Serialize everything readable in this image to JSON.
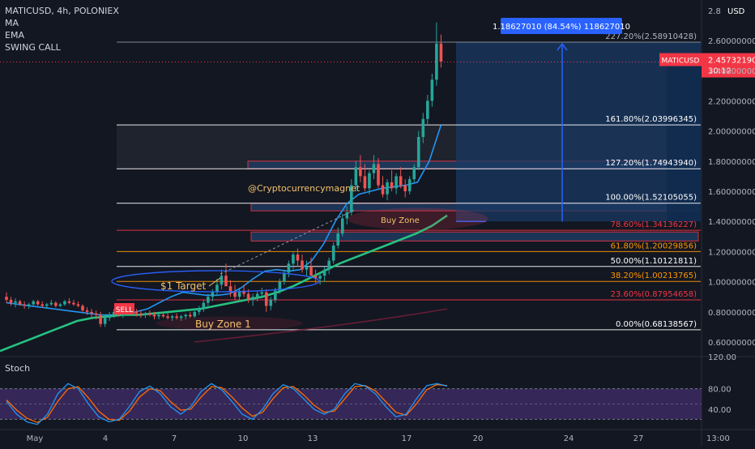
{
  "header": {
    "symbol_line": "MATICUSD, 4h, POLONIEX",
    "indicators": [
      "MA",
      "EMA",
      "SWING CALL"
    ]
  },
  "price_axis": {
    "currency": "USD",
    "ticks": [
      "2.8",
      "2.60000000",
      "2.40000000",
      "2.20000000",
      "2.00000000",
      "1.80000000",
      "1.60000000",
      "1.40000000",
      "1.20000000",
      "1.00000000",
      "0.80000000",
      "0.60000000"
    ],
    "current_symbol": "MATICUSD",
    "current_price": "2.45732190",
    "countdown": "30:12"
  },
  "stoch": {
    "label": "Stoch",
    "axis_top": "120.00",
    "levels": [
      "80.00",
      "40.00"
    ]
  },
  "time_axis": {
    "labels": [
      "May",
      "4",
      "7",
      "10",
      "13",
      "17",
      "20",
      "24",
      "27",
      "13:00"
    ]
  },
  "measure_box": {
    "label": "1.18627010 (84.54%) 118627010"
  },
  "fib_levels": [
    {
      "label": "227.20%(2.58910428)",
      "value": 2.5891,
      "color": "#b2b5be"
    },
    {
      "label": "161.80%(2.03996345)",
      "value": 2.04,
      "color": "#ffffff"
    },
    {
      "label": "127.20%(1.74943940)",
      "value": 1.7494,
      "color": "#ffffff"
    },
    {
      "label": "100.00%(1.52105055)",
      "value": 1.521,
      "color": "#ffffff"
    },
    {
      "label": "78.60%(1.34136227)",
      "value": 1.3414,
      "color": "#f23645"
    },
    {
      "label": "61.80%(1.20029856)",
      "value": 1.2003,
      "color": "#ff9800"
    },
    {
      "label": "50.00%(1.10121811)",
      "value": 1.1012,
      "color": "#ffffff"
    },
    {
      "label": "38.20%(1.00213765)",
      "value": 1.0021,
      "color": "#ff9800"
    },
    {
      "label": "23.60%(0.87954658)",
      "value": 0.8795,
      "color": "#f23645"
    },
    {
      "label": "0.00%(0.68138567)",
      "value": 0.6814,
      "color": "#ffffff"
    }
  ],
  "annotations": {
    "watermark": "@Cryptocurrencymagnet",
    "buy_zone": "Buy Zone",
    "buy_zone_1": "Buy Zone 1",
    "target": "$1 Target",
    "sell_tag": "SELL"
  },
  "colors": {
    "up": "#26a69a",
    "down": "#ef5350",
    "ema": "#2196f3",
    "ma": "#26c281",
    "price_tag": "#f23645",
    "measure": "#2962ff",
    "stoch_k": "#2196f3",
    "stoch_d": "#ff6d00"
  },
  "chart_data": {
    "type": "candlestick",
    "timeframe": "4h",
    "price_range": [
      0.55,
      2.82
    ],
    "candles_ohlc": [
      [
        0.9,
        0.93,
        0.86,
        0.88
      ],
      [
        0.88,
        0.9,
        0.84,
        0.86
      ],
      [
        0.86,
        0.89,
        0.83,
        0.87
      ],
      [
        0.87,
        0.88,
        0.84,
        0.85
      ],
      [
        0.85,
        0.87,
        0.82,
        0.84
      ],
      [
        0.84,
        0.86,
        0.82,
        0.85
      ],
      [
        0.85,
        0.88,
        0.84,
        0.87
      ],
      [
        0.87,
        0.88,
        0.84,
        0.85
      ],
      [
        0.85,
        0.87,
        0.83,
        0.84
      ],
      [
        0.84,
        0.86,
        0.82,
        0.85
      ],
      [
        0.85,
        0.88,
        0.84,
        0.86
      ],
      [
        0.86,
        0.87,
        0.83,
        0.84
      ],
      [
        0.84,
        0.86,
        0.83,
        0.85
      ],
      [
        0.85,
        0.88,
        0.84,
        0.87
      ],
      [
        0.87,
        0.89,
        0.85,
        0.86
      ],
      [
        0.86,
        0.88,
        0.84,
        0.85
      ],
      [
        0.85,
        0.87,
        0.83,
        0.84
      ],
      [
        0.84,
        0.85,
        0.8,
        0.81
      ],
      [
        0.81,
        0.83,
        0.78,
        0.8
      ],
      [
        0.8,
        0.82,
        0.76,
        0.79
      ],
      [
        0.79,
        0.81,
        0.75,
        0.78
      ],
      [
        0.78,
        0.8,
        0.7,
        0.72
      ],
      [
        0.72,
        0.78,
        0.7,
        0.76
      ],
      [
        0.76,
        0.8,
        0.74,
        0.78
      ],
      [
        0.78,
        0.82,
        0.76,
        0.8
      ],
      [
        0.8,
        0.82,
        0.77,
        0.78
      ],
      [
        0.78,
        0.81,
        0.76,
        0.8
      ],
      [
        0.8,
        0.84,
        0.78,
        0.82
      ],
      [
        0.82,
        0.84,
        0.79,
        0.8
      ],
      [
        0.8,
        0.82,
        0.77,
        0.79
      ],
      [
        0.79,
        0.81,
        0.76,
        0.78
      ],
      [
        0.78,
        0.8,
        0.76,
        0.79
      ],
      [
        0.79,
        0.81,
        0.77,
        0.78
      ],
      [
        0.78,
        0.8,
        0.75,
        0.77
      ],
      [
        0.77,
        0.79,
        0.75,
        0.78
      ],
      [
        0.78,
        0.8,
        0.76,
        0.77
      ],
      [
        0.77,
        0.79,
        0.75,
        0.76
      ],
      [
        0.76,
        0.78,
        0.74,
        0.77
      ],
      [
        0.77,
        0.79,
        0.75,
        0.76
      ],
      [
        0.76,
        0.78,
        0.74,
        0.77
      ],
      [
        0.77,
        0.79,
        0.75,
        0.78
      ],
      [
        0.78,
        0.8,
        0.76,
        0.77
      ],
      [
        0.77,
        0.82,
        0.76,
        0.8
      ],
      [
        0.8,
        0.84,
        0.78,
        0.82
      ],
      [
        0.82,
        0.88,
        0.8,
        0.86
      ],
      [
        0.86,
        0.92,
        0.84,
        0.9
      ],
      [
        0.9,
        0.95,
        0.87,
        0.93
      ],
      [
        0.93,
        1.02,
        0.91,
        0.98
      ],
      [
        0.98,
        1.08,
        0.95,
        1.04
      ],
      [
        1.04,
        1.12,
        1.0,
        0.97
      ],
      [
        0.97,
        1.01,
        0.9,
        0.93
      ],
      [
        0.93,
        0.98,
        0.88,
        0.9
      ],
      [
        0.9,
        0.96,
        0.87,
        0.94
      ],
      [
        0.94,
        0.98,
        0.9,
        0.92
      ],
      [
        0.92,
        0.95,
        0.86,
        0.88
      ],
      [
        0.88,
        0.92,
        0.84,
        0.9
      ],
      [
        0.9,
        0.94,
        0.87,
        0.92
      ],
      [
        0.92,
        0.96,
        0.89,
        0.93
      ],
      [
        0.93,
        0.95,
        0.8,
        0.84
      ],
      [
        0.84,
        0.9,
        0.81,
        0.88
      ],
      [
        0.88,
        0.96,
        0.86,
        0.94
      ],
      [
        0.94,
        1.02,
        0.92,
        1.0
      ],
      [
        1.0,
        1.08,
        0.98,
        1.06
      ],
      [
        1.06,
        1.14,
        1.03,
        1.12
      ],
      [
        1.12,
        1.2,
        1.08,
        1.18
      ],
      [
        1.18,
        1.22,
        1.1,
        1.14
      ],
      [
        1.14,
        1.18,
        1.06,
        1.08
      ],
      [
        1.08,
        1.14,
        1.04,
        1.1
      ],
      [
        1.1,
        1.16,
        1.06,
        1.04
      ],
      [
        1.04,
        1.08,
        0.99,
        1.02
      ],
      [
        1.02,
        1.06,
        0.98,
        1.04
      ],
      [
        1.04,
        1.1,
        1.0,
        1.08
      ],
      [
        1.08,
        1.16,
        1.05,
        1.14
      ],
      [
        1.14,
        1.26,
        1.12,
        1.24
      ],
      [
        1.24,
        1.36,
        1.22,
        1.32
      ],
      [
        1.32,
        1.45,
        1.3,
        1.42
      ],
      [
        1.42,
        1.5,
        1.38,
        1.46
      ],
      [
        1.46,
        1.68,
        1.44,
        1.64
      ],
      [
        1.64,
        1.8,
        1.6,
        1.76
      ],
      [
        1.76,
        1.84,
        1.66,
        1.7
      ],
      [
        1.7,
        1.78,
        1.6,
        1.62
      ],
      [
        1.62,
        1.74,
        1.58,
        1.72
      ],
      [
        1.72,
        1.84,
        1.68,
        1.78
      ],
      [
        1.78,
        1.82,
        1.62,
        1.64
      ],
      [
        1.64,
        1.7,
        1.56,
        1.58
      ],
      [
        1.58,
        1.68,
        1.54,
        1.66
      ],
      [
        1.66,
        1.74,
        1.6,
        1.62
      ],
      [
        1.62,
        1.72,
        1.58,
        1.7
      ],
      [
        1.7,
        1.76,
        1.62,
        1.64
      ],
      [
        1.64,
        1.68,
        1.56,
        1.6
      ],
      [
        1.6,
        1.7,
        1.58,
        1.68
      ],
      [
        1.68,
        1.78,
        1.66,
        1.76
      ],
      [
        1.76,
        2.0,
        1.74,
        1.96
      ],
      [
        1.96,
        2.12,
        1.92,
        2.08
      ],
      [
        2.08,
        2.24,
        2.04,
        2.2
      ],
      [
        2.2,
        2.38,
        2.16,
        2.34
      ],
      [
        2.34,
        2.72,
        2.3,
        2.58
      ],
      [
        2.58,
        2.64,
        2.42,
        2.46
      ]
    ],
    "ema": [
      0.86,
      0.85,
      0.84,
      0.83,
      0.82,
      0.81,
      0.8,
      0.79,
      0.78,
      0.78,
      0.79,
      0.8,
      0.82,
      0.86,
      0.9,
      0.93,
      0.92,
      0.91,
      0.91,
      0.92,
      0.96,
      1.02,
      1.07,
      1.08,
      1.07,
      1.08,
      1.14,
      1.25,
      1.4,
      1.52,
      1.58,
      1.6,
      1.62,
      1.63,
      1.64,
      1.66,
      1.8,
      2.04
    ],
    "ma": [
      0.54,
      0.58,
      0.62,
      0.66,
      0.7,
      0.74,
      0.76,
      0.77,
      0.78,
      0.78,
      0.79,
      0.8,
      0.81,
      0.82,
      0.84,
      0.86,
      0.88,
      0.9,
      0.93,
      0.97,
      1.02,
      1.07,
      1.12,
      1.16,
      1.2,
      1.24,
      1.28,
      1.32,
      1.37,
      1.44
    ],
    "stoch_k": [
      55,
      30,
      15,
      10,
      30,
      70,
      90,
      80,
      50,
      25,
      15,
      20,
      45,
      75,
      85,
      70,
      45,
      30,
      45,
      75,
      90,
      78,
      55,
      30,
      20,
      40,
      70,
      88,
      80,
      60,
      40,
      30,
      40,
      70,
      90,
      85,
      70,
      45,
      25,
      30,
      60,
      86,
      90,
      85
    ],
    "stoch_d": [
      58,
      38,
      22,
      14,
      24,
      55,
      80,
      84,
      62,
      36,
      20,
      18,
      36,
      64,
      80,
      76,
      55,
      38,
      40,
      64,
      84,
      82,
      64,
      42,
      26,
      34,
      60,
      82,
      84,
      68,
      48,
      34,
      36,
      60,
      84,
      86,
      76,
      55,
      34,
      28,
      50,
      78,
      88,
      86
    ]
  }
}
